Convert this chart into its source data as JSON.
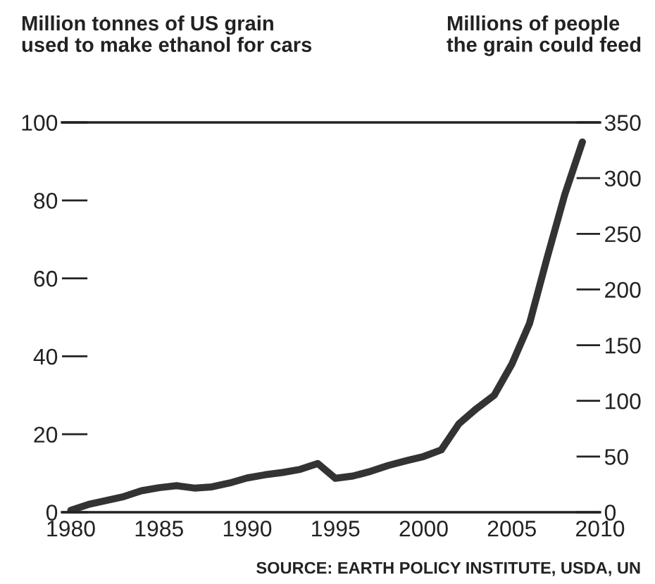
{
  "chart_data": {
    "type": "line",
    "ylabel": "Million tonnes of US grain\nused to make ethanol for cars",
    "y2label": "Millions of people\nthe grain could feed",
    "annotations": [
      "SOURCE: EARTH POLICY INSTITUTE, USDA, UN"
    ],
    "x": [
      1980,
      1981,
      1982,
      1983,
      1984,
      1985,
      1986,
      1987,
      1988,
      1989,
      1990,
      1991,
      1992,
      1993,
      1994,
      1995,
      1996,
      1997,
      1998,
      1999,
      2000,
      2001,
      2002,
      2003,
      2004,
      2005,
      2006,
      2007,
      2008,
      2009
    ],
    "series": [
      {
        "color": "#333333",
        "values": [
          0.5,
          2,
          3,
          4,
          5.5,
          6.3,
          6.8,
          6.2,
          6.5,
          7.5,
          8.8,
          9.6,
          10.2,
          11,
          12.5,
          8.7,
          9.3,
          10.5,
          12,
          13.2,
          14.3,
          16,
          22.7,
          26.6,
          30,
          38,
          48.4,
          65.3,
          81.5,
          95
        ]
      }
    ],
    "xlim": [
      1979.5,
      2010
    ],
    "xticks": [
      1980,
      1985,
      1990,
      1995,
      2000,
      2005,
      2010
    ],
    "ylim": [
      0,
      100
    ],
    "yticks": [
      0,
      20,
      40,
      60,
      80,
      100
    ],
    "y2lim": [
      0,
      350
    ],
    "y2ticks": [
      0,
      50,
      100,
      150,
      200,
      250,
      300,
      350
    ],
    "marker": "none",
    "line_style": "solid"
  }
}
